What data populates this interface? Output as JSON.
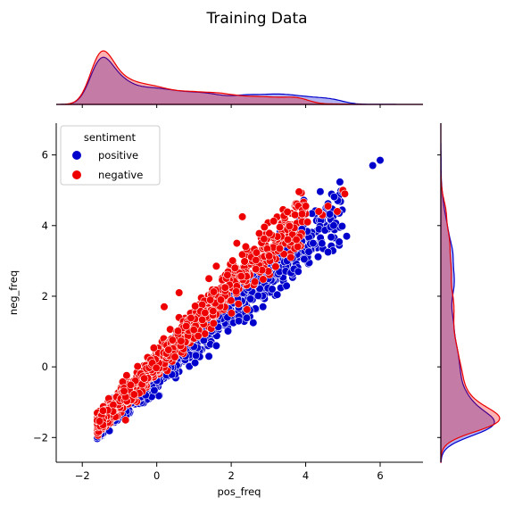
{
  "chart_data": {
    "type": "scatter",
    "title": "Training Data",
    "xlabel": "pos_freq",
    "ylabel": "neg_freq",
    "xlim": [
      -2.7,
      7.15
    ],
    "ylim": [
      -2.7,
      6.9
    ],
    "xticks": [
      -2,
      0,
      2,
      4,
      6
    ],
    "yticks": [
      -2,
      0,
      2,
      4,
      6
    ],
    "grid": false,
    "legend": {
      "title": "sentiment",
      "position": "top-left"
    },
    "marginals": {
      "top": "kde of pos_freq",
      "right": "kde of neg_freq"
    },
    "series": [
      {
        "name": "positive",
        "color": "#0000cc",
        "trend": {
          "slope": 0.93,
          "intercept": -0.25,
          "x_range": [
            -1.6,
            5.0
          ]
        },
        "outliers": [
          [
            6.0,
            5.85
          ],
          [
            5.8,
            5.7
          ],
          [
            5.1,
            3.7
          ],
          [
            4.9,
            4.35
          ],
          [
            4.75,
            4.0
          ],
          [
            4.6,
            3.25
          ],
          [
            4.2,
            3.5
          ],
          [
            3.9,
            3.9
          ],
          [
            3.8,
            2.7
          ],
          [
            3.7,
            3.3
          ],
          [
            3.5,
            3.0
          ],
          [
            3.4,
            4.2
          ],
          [
            3.1,
            2.2
          ],
          [
            3.0,
            2.5
          ],
          [
            2.5,
            1.6
          ],
          [
            2.2,
            1.3
          ],
          [
            1.9,
            1.4
          ],
          [
            1.6,
            0.6
          ],
          [
            1.4,
            0.3
          ]
        ]
      },
      {
        "name": "negative",
        "color": "#ee0000",
        "trend": {
          "slope": 1.08,
          "intercept": 0.1,
          "x_range": [
            -1.6,
            4.0
          ]
        },
        "outliers": [
          [
            5.0,
            5.0
          ],
          [
            5.05,
            4.9
          ],
          [
            4.85,
            4.4
          ],
          [
            4.6,
            4.55
          ],
          [
            4.45,
            4.3
          ],
          [
            4.35,
            4.4
          ],
          [
            4.05,
            4.1
          ],
          [
            4.0,
            4.55
          ],
          [
            3.75,
            3.6
          ],
          [
            3.6,
            3.1
          ],
          [
            3.3,
            3.35
          ],
          [
            2.3,
            4.25
          ],
          [
            2.15,
            3.5
          ],
          [
            2.1,
            2.8
          ],
          [
            1.9,
            2.6
          ],
          [
            1.6,
            2.85
          ],
          [
            1.4,
            2.5
          ],
          [
            0.6,
            2.1
          ],
          [
            0.2,
            1.7
          ]
        ]
      }
    ]
  }
}
